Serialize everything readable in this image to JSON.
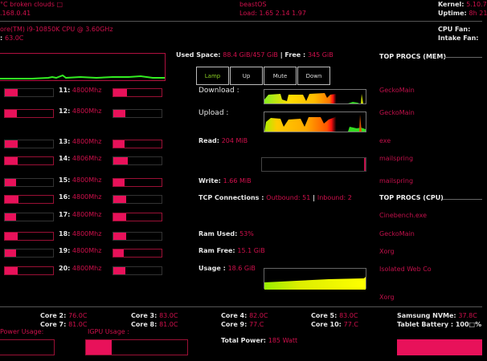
{
  "header": {
    "weather": "°C broken clouds □",
    "ip": ".168.0.41",
    "hostname": "beastOS",
    "load_label": "Load: ",
    "load_value": "1.65 2.14 1.97",
    "kernel_label": "Kernel: ",
    "kernel_value": "5.10.7",
    "uptime_label": "Uptime: ",
    "uptime_value": "8h 21"
  },
  "cpu": {
    "model": "ore(TM) i9-10850K CPU @ 3.60GHz",
    "temp_prefix": ": ",
    "temp": "63.0C",
    "cpu_fan_label": "CPU Fan:",
    "intake_fan_label": "Intake Fan:",
    "graph_color": "#33ee22"
  },
  "cores": [
    {
      "label": "11:",
      "freq": "4800Mhz",
      "left_pct": 26,
      "right_pct": 28
    },
    {
      "label": "12:",
      "freq": "4800Mhz",
      "left_pct": 25,
      "right_pct": 25
    },
    {
      "label": "13:",
      "freq": "4800Mhz",
      "left_pct": 27,
      "right_pct": 24
    },
    {
      "label": "14:",
      "freq": "4806Mhz",
      "left_pct": 26,
      "right_pct": 30
    },
    {
      "label": "15:",
      "freq": "4800Mhz",
      "left_pct": 24,
      "right_pct": 24
    },
    {
      "label": "16:",
      "freq": "4800Mhz",
      "left_pct": 29,
      "right_pct": 26
    },
    {
      "label": "17:",
      "freq": "4800Mhz",
      "left_pct": 24,
      "right_pct": 26
    },
    {
      "label": "18:",
      "freq": "4800Mhz",
      "left_pct": 26,
      "right_pct": 26
    },
    {
      "label": "19:",
      "freq": "4800Mhz",
      "left_pct": 24,
      "right_pct": 22
    },
    {
      "label": "20:",
      "freq": "4800Mhz",
      "left_pct": 26,
      "right_pct": 25
    }
  ],
  "disk": {
    "used_label": "Used Space: ",
    "used_value": "88.4 GiB/457 GiB",
    "sep": " | ",
    "free_label": "Free : ",
    "free_value": " 345 GiB",
    "read_label": "Read: ",
    "read_value": "204 MiB",
    "write_label": "Write: ",
    "write_value": "1.66 MiB"
  },
  "media_buttons": [
    {
      "label": "Lamp",
      "color": "#88cc22"
    },
    {
      "label": "Up",
      "color": "#dddddd"
    },
    {
      "label": "Mute",
      "color": "#dddddd"
    },
    {
      "label": "Down",
      "color": "#dddddd"
    }
  ],
  "network": {
    "download_label": "Download :",
    "upload_label": "Upload :",
    "tcp_label": "TCP Connections : ",
    "outbound": "Outbound: 51",
    "sep": " | ",
    "inbound": "Inbound: 2"
  },
  "memory": {
    "ram_used_label": "Ram Used: ",
    "ram_used_value": "53%",
    "ram_free_label": "Ram Free: ",
    "ram_free_value": " 15.1 GiB",
    "usage_label": "Usage : ",
    "usage_value": " 18.6 GiB"
  },
  "top_mem": {
    "title": "TOP PROCS (MEM)",
    "items": [
      "GeckoMain",
      "GeckoMain",
      "exe",
      "mailspring",
      "mailspring"
    ]
  },
  "top_cpu": {
    "title": "TOP PROCS (CPU)",
    "items": [
      "Cinebench.exe",
      "GeckoMain",
      "Xorg",
      "Isolated Web Co",
      "Xorg"
    ]
  },
  "temps": {
    "core2_label": "Core 2: ",
    "core2": "76.0C",
    "core7_label": "Core 7: ",
    "core7": "81.0C",
    "core3_label": "Core 3: ",
    "core3": "83.0C",
    "core8_label": "Core 8: ",
    "core8": "81.0C",
    "core4_label": "Core 4: ",
    "core4": "82.0C",
    "core9_label": "Core 9:  ",
    "core9": "77.C",
    "core5_label": "Core 5: ",
    "core5": "83.0C",
    "core10_label": "Core 10:  ",
    "core10": "77.C",
    "nvme_label": "Samsung NVMe: ",
    "nvme": "37.8C",
    "battery_label": "Tablet Battery : ",
    "battery": "100□%"
  },
  "power": {
    "power_usage_label": "Power Usage:",
    "igpu_label": "IGPU Usage :",
    "igpu_pct": 25,
    "total_label": "Total Power: ",
    "total_value": "185 Watt"
  },
  "colors": {
    "accent": "#e8115a",
    "value_text": "#d0104c",
    "label_text": "#e6e6e6",
    "background": "#000000"
  }
}
